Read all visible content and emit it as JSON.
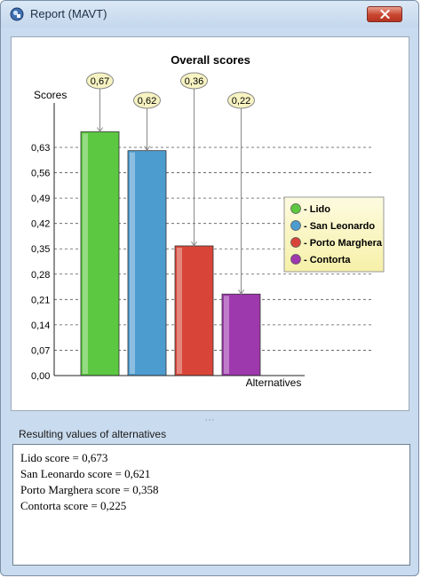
{
  "window": {
    "title": "Report (MAVT)"
  },
  "chart_data": {
    "type": "bar",
    "title": "Overall scores",
    "ylabel": "Scores",
    "xlabel": "Alternatives",
    "ylim": [
      0,
      0.63
    ],
    "yticks": [
      "0,00",
      "0,07",
      "0,14",
      "0,21",
      "0,28",
      "0,35",
      "0,42",
      "0,49",
      "0,56",
      "0,63"
    ],
    "grid": "dashed horizontal",
    "legend_position": "right",
    "categories": [
      "Lido",
      "San Leonardo",
      "Porto Marghera",
      "Contorta"
    ],
    "values": [
      0.673,
      0.621,
      0.358,
      0.225
    ],
    "data_labels": [
      "0,67",
      "0,62",
      "0,36",
      "0,22"
    ],
    "legend": [
      "- Lido",
      "- San Leonardo",
      "- Porto Marghera",
      "- Contorta"
    ],
    "colors": [
      "#5cc841",
      "#4d9cd0",
      "#d84538",
      "#9e38ad"
    ],
    "legend_bg": "#fbf7c5"
  },
  "results": {
    "label": "Resulting values of alternatives",
    "lines": [
      "Lido score = 0,673",
      "San Leonardo score = 0,621",
      "Porto Marghera score = 0,358",
      "Contorta score = 0,225"
    ]
  }
}
